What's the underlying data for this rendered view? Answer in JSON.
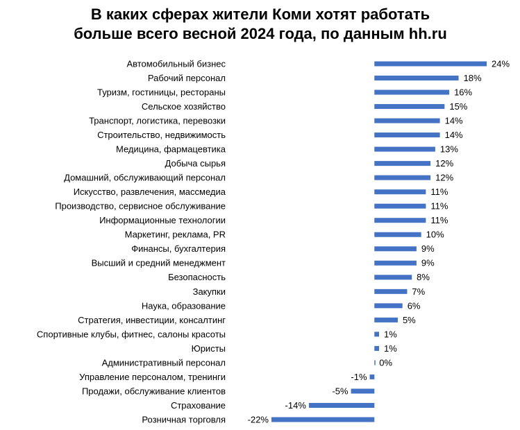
{
  "chart_data": {
    "type": "bar",
    "orientation": "horizontal",
    "title": [
      "В каких сферах жители Коми хотят работать",
      "больше всего весной 2024 года, по данным hh.ru"
    ],
    "categories": [
      "Автомобильный бизнес",
      "Рабочий персонал",
      "Туризм, гостиницы, рестораны",
      "Сельское хозяйство",
      "Транспорт, логистика, перевозки",
      "Строительство, недвижимость",
      "Медицина, фармацевтика",
      "Добыча сырья",
      "Домашний, обслуживающий персонал",
      "Искусство, развлечения, массмедиа",
      "Производство, сервисное обслуживание",
      "Информационные технологии",
      "Маркетинг, реклама, PR",
      "Финансы, бухгалтерия",
      "Высший и средний менеджмент",
      "Безопасность",
      "Закупки",
      "Наука, образование",
      "Стратегия, инвестиции, консалтинг",
      "Спортивные клубы, фитнес, салоны красоты",
      "Юристы",
      "Административный персонал",
      "Управление персоналом, тренинги",
      "Продажи, обслуживание клиентов",
      "Страхование",
      "Розничная торговля"
    ],
    "values": [
      24,
      18,
      16,
      15,
      14,
      14,
      13,
      12,
      12,
      11,
      11,
      11,
      10,
      9,
      9,
      8,
      7,
      6,
      5,
      1,
      1,
      0,
      -1,
      -5,
      -14,
      -22
    ],
    "value_labels": [
      "24%",
      "18%",
      "16%",
      "15%",
      "14%",
      "14%",
      "13%",
      "12%",
      "12%",
      "11%",
      "11%",
      "11%",
      "10%",
      "9%",
      "9%",
      "8%",
      "7%",
      "6%",
      "5%",
      "1%",
      "1%",
      "0%",
      "-1%",
      "-5%",
      "-14%",
      "-22%"
    ],
    "color": "#4472c4"
  }
}
